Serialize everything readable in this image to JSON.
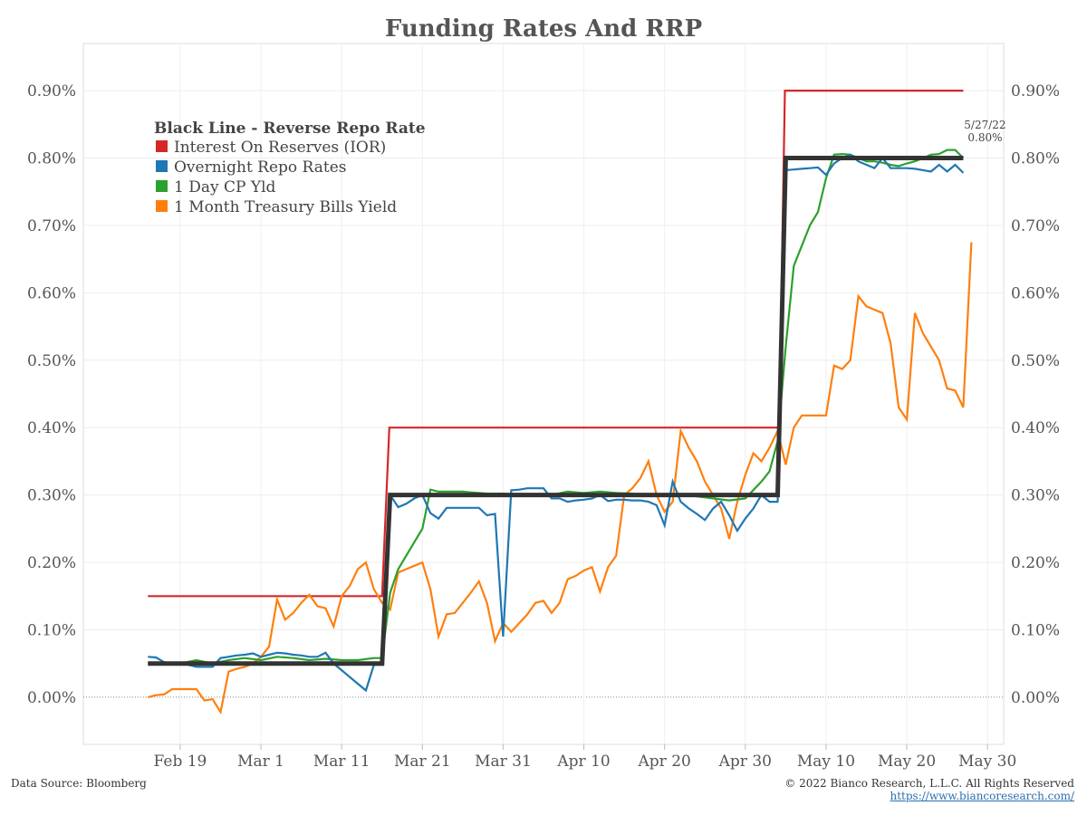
{
  "chart_data": {
    "type": "line",
    "title": "Funding Rates And RRP",
    "xlabel": "",
    "ylabel": "",
    "ylim": [
      -0.07,
      0.97
    ],
    "xlim_days": [
      -12,
      102
    ],
    "y_ticks": [
      "0.00%",
      "0.10%",
      "0.20%",
      "0.30%",
      "0.40%",
      "0.50%",
      "0.60%",
      "0.70%",
      "0.80%",
      "0.90%"
    ],
    "y_tick_values": [
      0,
      0.1,
      0.2,
      0.3,
      0.4,
      0.5,
      0.6,
      0.7,
      0.8,
      0.9
    ],
    "x_ticks": [
      {
        "label": "Feb 19",
        "day": 0
      },
      {
        "label": "Mar 1",
        "day": 10
      },
      {
        "label": "Mar 11",
        "day": 20
      },
      {
        "label": "Mar 21",
        "day": 30
      },
      {
        "label": "Mar 31",
        "day": 40
      },
      {
        "label": "Apr 10",
        "day": 50
      },
      {
        "label": "Apr 20",
        "day": 60
      },
      {
        "label": "Apr 30",
        "day": 70
      },
      {
        "label": "May 10",
        "day": 80
      },
      {
        "label": "May 20",
        "day": 90
      },
      {
        "label": "May 30",
        "day": 100
      }
    ],
    "legend": {
      "title": "Black Line - Reverse Repo Rate",
      "position": "top-left"
    },
    "annotation": {
      "date": "5/27/22",
      "value": "0.80%",
      "day": 97
    },
    "series": [
      {
        "name": "Interest On Reserves (IOR)",
        "color": "#d62728",
        "step": true,
        "points": [
          [
            -4,
            0.15
          ],
          [
            25,
            0.15
          ],
          [
            25.9,
            0.4
          ],
          [
            74.2,
            0.4
          ],
          [
            74.9,
            0.9
          ],
          [
            97,
            0.9
          ]
        ]
      },
      {
        "name": "Overnight Repo Rates",
        "color": "#1f77b4",
        "points": [
          [
            -4,
            0.06
          ],
          [
            -3,
            0.059
          ],
          [
            -2,
            0.052
          ],
          [
            -1,
            0.05
          ],
          [
            0,
            0.05
          ],
          [
            1,
            0.048
          ],
          [
            2,
            0.045
          ],
          [
            3,
            0.045
          ],
          [
            4,
            0.045
          ],
          [
            5,
            0.058
          ],
          [
            6,
            0.06
          ],
          [
            7,
            0.062
          ],
          [
            8,
            0.063
          ],
          [
            9,
            0.065
          ],
          [
            10,
            0.06
          ],
          [
            11,
            0.063
          ],
          [
            12,
            0.066
          ],
          [
            13,
            0.065
          ],
          [
            14,
            0.063
          ],
          [
            15,
            0.062
          ],
          [
            16,
            0.06
          ],
          [
            17,
            0.06
          ],
          [
            18,
            0.066
          ],
          [
            19,
            0.05
          ],
          [
            20,
            0.04
          ],
          [
            21,
            0.03
          ],
          [
            22,
            0.02
          ],
          [
            23,
            0.01
          ],
          [
            24,
            0.048
          ],
          [
            25,
            0.048
          ],
          [
            26,
            0.3
          ],
          [
            27,
            0.282
          ],
          [
            28,
            0.287
          ],
          [
            29,
            0.295
          ],
          [
            30,
            0.3
          ],
          [
            31,
            0.273
          ],
          [
            32,
            0.265
          ],
          [
            33,
            0.281
          ],
          [
            34,
            0.281
          ],
          [
            35,
            0.281
          ],
          [
            36,
            0.281
          ],
          [
            37,
            0.281
          ],
          [
            38,
            0.27
          ],
          [
            39,
            0.272
          ],
          [
            40,
            0.09
          ],
          [
            41,
            0.307
          ],
          [
            42,
            0.308
          ],
          [
            43,
            0.31
          ],
          [
            44,
            0.31
          ],
          [
            45,
            0.31
          ],
          [
            46,
            0.295
          ],
          [
            47,
            0.295
          ],
          [
            48,
            0.29
          ],
          [
            49,
            0.292
          ],
          [
            50,
            0.293
          ],
          [
            51,
            0.295
          ],
          [
            52,
            0.3
          ],
          [
            53,
            0.291
          ],
          [
            54,
            0.293
          ],
          [
            55,
            0.293
          ],
          [
            56,
            0.292
          ],
          [
            57,
            0.292
          ],
          [
            58,
            0.29
          ],
          [
            59,
            0.285
          ],
          [
            60,
            0.255
          ],
          [
            61,
            0.32
          ],
          [
            62,
            0.29
          ],
          [
            63,
            0.28
          ],
          [
            64,
            0.272
          ],
          [
            65,
            0.263
          ],
          [
            66,
            0.28
          ],
          [
            67,
            0.29
          ],
          [
            68,
            0.27
          ],
          [
            69,
            0.247
          ],
          [
            70,
            0.265
          ],
          [
            71,
            0.28
          ],
          [
            72,
            0.3
          ],
          [
            73,
            0.29
          ],
          [
            74,
            0.29
          ],
          [
            75,
            0.782
          ],
          [
            76,
            0.783
          ],
          [
            77,
            0.784
          ],
          [
            78,
            0.785
          ],
          [
            79,
            0.786
          ],
          [
            80,
            0.775
          ],
          [
            81,
            0.792
          ],
          [
            82,
            0.8
          ],
          [
            83,
            0.805
          ],
          [
            84,
            0.795
          ],
          [
            85,
            0.79
          ],
          [
            86,
            0.785
          ],
          [
            87,
            0.8
          ],
          [
            88,
            0.785
          ],
          [
            89,
            0.785
          ],
          [
            90,
            0.785
          ],
          [
            91,
            0.784
          ],
          [
            92,
            0.782
          ],
          [
            93,
            0.78
          ],
          [
            94,
            0.79
          ],
          [
            95,
            0.78
          ],
          [
            96,
            0.79
          ],
          [
            97,
            0.778
          ]
        ]
      },
      {
        "name": "1 Day CP Yld",
        "color": "#2ca02c",
        "points": [
          [
            -4,
            0.05
          ],
          [
            0,
            0.05
          ],
          [
            2,
            0.055
          ],
          [
            4,
            0.05
          ],
          [
            6,
            0.055
          ],
          [
            8,
            0.058
          ],
          [
            10,
            0.055
          ],
          [
            12,
            0.06
          ],
          [
            14,
            0.058
          ],
          [
            16,
            0.055
          ],
          [
            18,
            0.057
          ],
          [
            20,
            0.055
          ],
          [
            22,
            0.055
          ],
          [
            24,
            0.058
          ],
          [
            25,
            0.058
          ],
          [
            26,
            0.155
          ],
          [
            27,
            0.19
          ],
          [
            28,
            0.21
          ],
          [
            29,
            0.23
          ],
          [
            30,
            0.25
          ],
          [
            31,
            0.308
          ],
          [
            32,
            0.305
          ],
          [
            33,
            0.305
          ],
          [
            34,
            0.305
          ],
          [
            35,
            0.305
          ],
          [
            36,
            0.304
          ],
          [
            37,
            0.303
          ],
          [
            38,
            0.302
          ],
          [
            40,
            0.302
          ],
          [
            42,
            0.3
          ],
          [
            44,
            0.3
          ],
          [
            46,
            0.3
          ],
          [
            48,
            0.305
          ],
          [
            50,
            0.303
          ],
          [
            52,
            0.305
          ],
          [
            54,
            0.303
          ],
          [
            56,
            0.302
          ],
          [
            58,
            0.3
          ],
          [
            60,
            0.3
          ],
          [
            62,
            0.3
          ],
          [
            64,
            0.298
          ],
          [
            66,
            0.295
          ],
          [
            68,
            0.292
          ],
          [
            70,
            0.295
          ],
          [
            72,
            0.32
          ],
          [
            73,
            0.335
          ],
          [
            74,
            0.38
          ],
          [
            75,
            0.52
          ],
          [
            76,
            0.64
          ],
          [
            77,
            0.67
          ],
          [
            78,
            0.7
          ],
          [
            79,
            0.72
          ],
          [
            80,
            0.77
          ],
          [
            81,
            0.805
          ],
          [
            82,
            0.806
          ],
          [
            83,
            0.805
          ],
          [
            84,
            0.8
          ],
          [
            85,
            0.795
          ],
          [
            86,
            0.795
          ],
          [
            87,
            0.793
          ],
          [
            88,
            0.79
          ],
          [
            89,
            0.788
          ],
          [
            90,
            0.792
          ],
          [
            91,
            0.795
          ],
          [
            92,
            0.8
          ],
          [
            93,
            0.805
          ],
          [
            94,
            0.806
          ],
          [
            95,
            0.812
          ],
          [
            96,
            0.812
          ],
          [
            97,
            0.8
          ]
        ]
      },
      {
        "name": "1 Month Treasury Bills Yield",
        "color": "#ff7f0e",
        "points": [
          [
            -4,
            0.0
          ],
          [
            -3,
            0.003
          ],
          [
            -2,
            0.004
          ],
          [
            -1,
            0.012
          ],
          [
            0,
            0.012
          ],
          [
            1,
            0.012
          ],
          [
            2,
            0.012
          ],
          [
            3,
            -0.005
          ],
          [
            4,
            -0.003
          ],
          [
            5,
            -0.022
          ],
          [
            6,
            0.038
          ],
          [
            7,
            0.042
          ],
          [
            8,
            0.045
          ],
          [
            9,
            0.05
          ],
          [
            10,
            0.06
          ],
          [
            11,
            0.075
          ],
          [
            12,
            0.145
          ],
          [
            13,
            0.115
          ],
          [
            14,
            0.125
          ],
          [
            15,
            0.14
          ],
          [
            16,
            0.152
          ],
          [
            17,
            0.135
          ],
          [
            18,
            0.132
          ],
          [
            19,
            0.105
          ],
          [
            20,
            0.15
          ],
          [
            21,
            0.165
          ],
          [
            22,
            0.19
          ],
          [
            23,
            0.2
          ],
          [
            24,
            0.16
          ],
          [
            25,
            0.14
          ],
          [
            26,
            0.13
          ],
          [
            27,
            0.185
          ],
          [
            28,
            0.19
          ],
          [
            29,
            0.195
          ],
          [
            30,
            0.2
          ],
          [
            31,
            0.16
          ],
          [
            32,
            0.09
          ],
          [
            33,
            0.123
          ],
          [
            34,
            0.125
          ],
          [
            35,
            0.14
          ],
          [
            36,
            0.155
          ],
          [
            37,
            0.172
          ],
          [
            38,
            0.14
          ],
          [
            39,
            0.083
          ],
          [
            40,
            0.11
          ],
          [
            41,
            0.097
          ],
          [
            42,
            0.11
          ],
          [
            43,
            0.123
          ],
          [
            44,
            0.14
          ],
          [
            45,
            0.143
          ],
          [
            46,
            0.125
          ],
          [
            47,
            0.14
          ],
          [
            48,
            0.175
          ],
          [
            49,
            0.18
          ],
          [
            50,
            0.188
          ],
          [
            51,
            0.193
          ],
          [
            52,
            0.157
          ],
          [
            53,
            0.193
          ],
          [
            54,
            0.21
          ],
          [
            55,
            0.3
          ],
          [
            56,
            0.31
          ],
          [
            57,
            0.325
          ],
          [
            58,
            0.35
          ],
          [
            59,
            0.3
          ],
          [
            60,
            0.275
          ],
          [
            61,
            0.29
          ],
          [
            62,
            0.395
          ],
          [
            63,
            0.37
          ],
          [
            64,
            0.35
          ],
          [
            65,
            0.32
          ],
          [
            66,
            0.3
          ],
          [
            67,
            0.28
          ],
          [
            68,
            0.235
          ],
          [
            69,
            0.29
          ],
          [
            70,
            0.33
          ],
          [
            71,
            0.362
          ],
          [
            72,
            0.35
          ],
          [
            73,
            0.37
          ],
          [
            74,
            0.395
          ],
          [
            75,
            0.345
          ],
          [
            76,
            0.4
          ],
          [
            77,
            0.418
          ],
          [
            78,
            0.418
          ],
          [
            79,
            0.418
          ],
          [
            80,
            0.418
          ],
          [
            81,
            0.492
          ],
          [
            82,
            0.487
          ],
          [
            83,
            0.5
          ],
          [
            84,
            0.595
          ],
          [
            85,
            0.58
          ],
          [
            86,
            0.575
          ],
          [
            87,
            0.57
          ],
          [
            88,
            0.525
          ],
          [
            89,
            0.43
          ],
          [
            90,
            0.412
          ],
          [
            91,
            0.57
          ],
          [
            92,
            0.54
          ],
          [
            93,
            0.52
          ],
          [
            94,
            0.5
          ],
          [
            95,
            0.458
          ],
          [
            96,
            0.455
          ],
          [
            97,
            0.43
          ],
          [
            98,
            0.675
          ]
        ]
      },
      {
        "name": "Reverse Repo Rate",
        "color": "#333333",
        "step": true,
        "legend": false,
        "points": [
          [
            -4,
            0.05
          ],
          [
            25,
            0.05
          ],
          [
            26,
            0.3
          ],
          [
            74,
            0.3
          ],
          [
            75,
            0.8
          ],
          [
            97,
            0.8
          ]
        ]
      }
    ]
  },
  "footer": {
    "source": "Data Source: Bloomberg",
    "copyright": "© 2022 Bianco Research, L.L.C. All Rights Reserved",
    "url": "https://www.biancoresearch.com/"
  }
}
